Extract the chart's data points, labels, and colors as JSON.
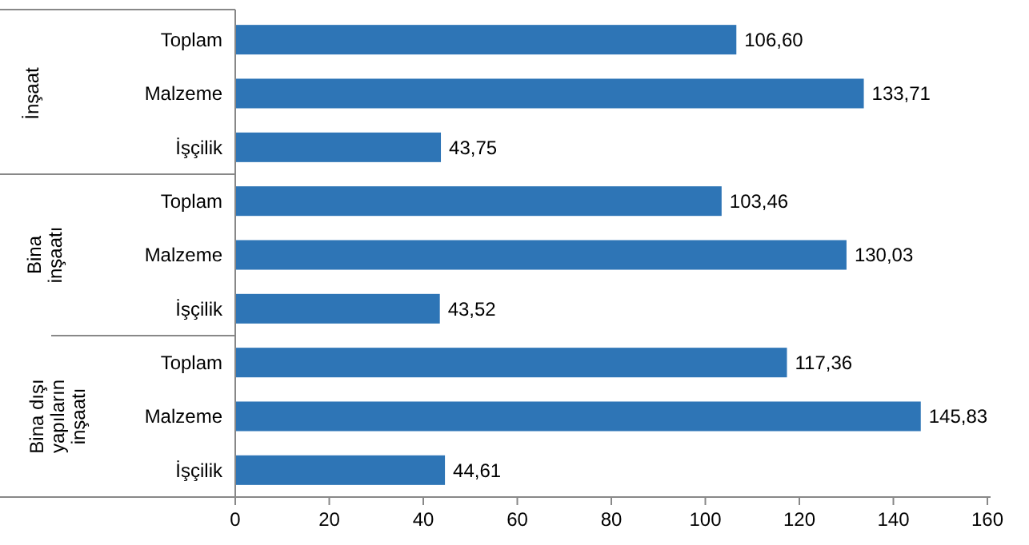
{
  "chart_data": {
    "type": "bar",
    "orientation": "horizontal",
    "categories": [
      "Toplam",
      "Malzeme",
      "İşçilik",
      "Toplam",
      "Malzeme",
      "İşçilik",
      "Toplam",
      "Malzeme",
      "İşçilik"
    ],
    "values": [
      106.6,
      133.71,
      43.75,
      103.46,
      130.03,
      43.52,
      117.36,
      145.83,
      44.61
    ],
    "value_labels": [
      "106,60",
      "133,71",
      "43,75",
      "103,46",
      "130,03",
      "43,52",
      "117,36",
      "145,83",
      "44,61"
    ],
    "color": "#2e75b6",
    "xlim": [
      0,
      160
    ],
    "xticks": [
      0,
      20,
      40,
      60,
      80,
      100,
      120,
      140,
      160
    ],
    "annotations": [
      "İnşaat",
      "Bina inşaatı",
      "Bina dışı yapıların inşaatı"
    ],
    "grid": false
  }
}
